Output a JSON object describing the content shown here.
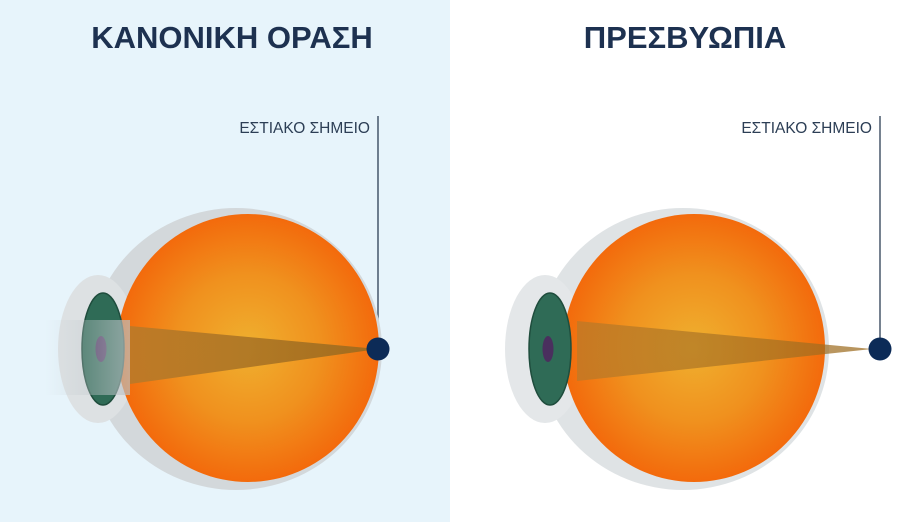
{
  "panels": [
    {
      "title": "ΚΑΝΟΝΙΚΗ ΟΡΑΣΗ",
      "focal_label": "ΕΣΤΙΑΚΟ ΣΗΜΕΙΟ",
      "background": "#e7f4fb"
    },
    {
      "title": "ΠΡΕΣΒΥΩΠΙΑ",
      "focal_label": "ΕΣΤΙΑΚΟ ΣΗΜΕΙΟ",
      "background": "#ffffff"
    }
  ],
  "colors": {
    "eyeball": "#f26b0f",
    "eyeball_center": "#efab2e",
    "iris": "#2f6b56",
    "focal_point": "#0c2b57",
    "title": "#1d3150"
  }
}
